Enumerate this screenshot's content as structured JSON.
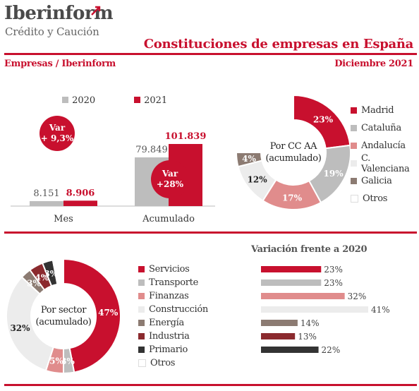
{
  "brand": {
    "name": "Iberinform",
    "tagline": "Crédito y Caución",
    "accent": "#c8102e"
  },
  "header": {
    "title": "Constituciones de empresas en España",
    "source": "Empresas / Iberinform",
    "date": "Diciembre 2021"
  },
  "chart_data": [
    {
      "type": "bar",
      "categories": [
        "Mes",
        "Acumulado"
      ],
      "series": [
        {
          "name": "2020",
          "values": [
            8151,
            79849
          ],
          "labels": [
            "8.151",
            "79.849"
          ],
          "color": "#bdbdbd"
        },
        {
          "name": "2021",
          "values": [
            8906,
            101839
          ],
          "labels": [
            "8.906",
            "101.839"
          ],
          "color": "#c8102e"
        }
      ],
      "annotations": [
        {
          "category": "Mes",
          "text_line1": "Var",
          "text_line2": "+ 9,3%"
        },
        {
          "category": "Acumulado",
          "text_line1": "Var",
          "text_line2": "+28%"
        }
      ],
      "legend": "top"
    },
    {
      "type": "pie",
      "center_line1": "Por CC AA",
      "center_line2": "(acumulado)",
      "slices": [
        {
          "name": "Madrid",
          "value": 23,
          "label": "23%",
          "color": "#c8102e"
        },
        {
          "name": "Cataluña",
          "value": 19,
          "label": "19%",
          "color": "#bdbdbd"
        },
        {
          "name": "Andalucía",
          "value": 17,
          "label": "17%",
          "color": "#e08c8c"
        },
        {
          "name": "C. Valenciana",
          "value": 12,
          "label": "12%",
          "color": "#ececec"
        },
        {
          "name": "Galicia",
          "value": 4,
          "label": "4%",
          "color": "#8c7b72"
        },
        {
          "name": "Otros",
          "value": 25,
          "label": "",
          "color": "#ffffff"
        }
      ],
      "legend": "right"
    },
    {
      "type": "pie",
      "center_line1": "Por sector",
      "center_line2": "(acumulado)",
      "slices": [
        {
          "name": "Servicios",
          "value": 47,
          "label": "47%",
          "color": "#c8102e"
        },
        {
          "name": "Transporte",
          "value": 3,
          "label": "3%",
          "color": "#bdbdbd"
        },
        {
          "name": "Finanzas",
          "value": 5,
          "label": "5%",
          "color": "#e08c8c"
        },
        {
          "name": "Construcción",
          "value": 32,
          "label": "32%",
          "color": "#ececec"
        },
        {
          "name": "Energía",
          "value": 3,
          "label": "3%",
          "color": "#8c7b72"
        },
        {
          "name": "Industria",
          "value": 4,
          "label": "4%",
          "color": "#8b2a2e"
        },
        {
          "name": "Primario",
          "value": 3,
          "label": "3%",
          "color": "#333333"
        },
        {
          "name": "Otros",
          "value": 3,
          "label": "",
          "color": "#ffffff"
        }
      ],
      "legend": "right"
    },
    {
      "type": "bar",
      "orientation": "horizontal",
      "title": "Variación frente a 2020",
      "values": [
        23,
        23,
        32,
        41,
        14,
        13,
        22
      ],
      "labels": [
        "23%",
        "23%",
        "32%",
        "41%",
        "14%",
        "13%",
        "22%"
      ],
      "colors": [
        "#c8102e",
        "#bdbdbd",
        "#e08c8c",
        "#ececec",
        "#8c7b72",
        "#8b2a2e",
        "#333333"
      ]
    }
  ]
}
